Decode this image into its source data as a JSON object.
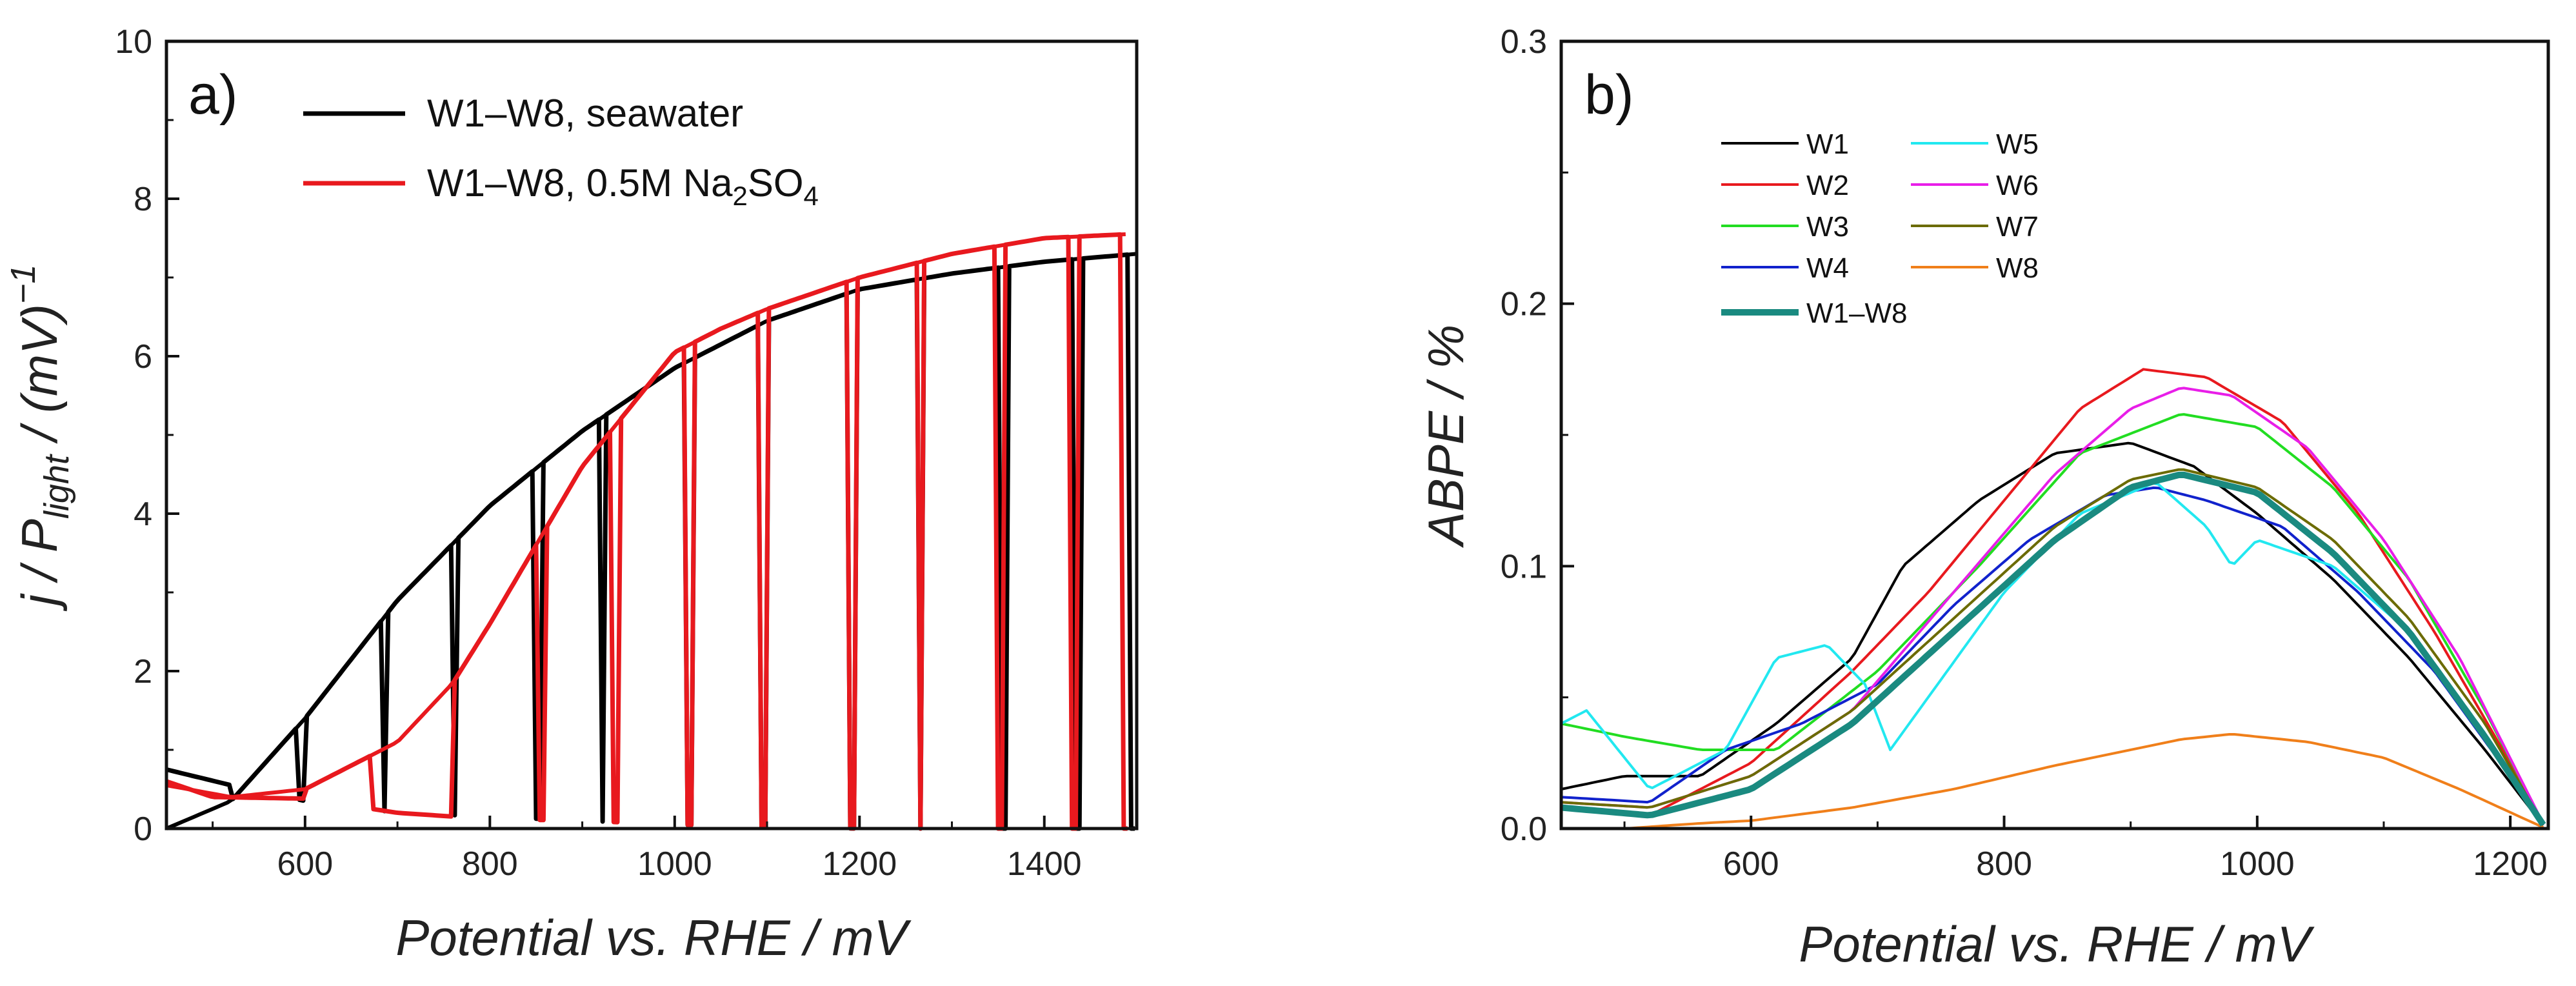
{
  "chart_data": [
    {
      "type": "line",
      "panel_label": "a)",
      "xlabel": "Potential vs. RHE / mV",
      "ylabel": {
        "main": "j / P",
        "sub": "light",
        "unit": " / (mV)",
        "sup": "−1"
      },
      "xlim": [
        450,
        1500
      ],
      "ylim": [
        0,
        10
      ],
      "x_ticks": [
        600,
        800,
        1000,
        1200,
        1400
      ],
      "y_ticks": [
        0,
        2,
        4,
        6,
        8,
        10
      ],
      "grid": false,
      "legend_position": "top-left",
      "series": [
        {
          "name": "W1–W8, seawater",
          "label_main": "W1–W8, seawater",
          "color": "#000000",
          "envelope": {
            "x": [
              450,
              520,
              600,
              700,
              800,
              900,
              1000,
              1100,
              1200,
              1300,
              1400,
              1500
            ],
            "y": [
              0.0,
              0.35,
              1.4,
              2.9,
              4.1,
              5.05,
              5.85,
              6.45,
              6.85,
              7.05,
              7.2,
              7.3
            ]
          },
          "dark_baseline": {
            "x": [
              450,
              520,
              600,
              700,
              800,
              900,
              1000,
              1100,
              1200,
              1500
            ],
            "y": [
              0.75,
              0.55,
              0.35,
              0.2,
              0.15,
              0.1,
              0.05,
              0.02,
              0.0,
              0.0
            ]
          },
          "chop_on": [
            520,
            600,
            690,
            765,
            855,
            925,
            1020,
            1100,
            1195,
            1270,
            1360,
            1440
          ],
          "chop_off": [
            600,
            690,
            765,
            855,
            925,
            1020,
            1100,
            1195,
            1270,
            1360,
            1440,
            1500
          ]
        },
        {
          "name": "W1–W8, 0.5M Na2SO4",
          "label_main": "W1–W8, 0.5M Na",
          "label_sub1": "2",
          "label_mid": "SO",
          "label_sub2": "4",
          "color": "#e8191e",
          "envelope": {
            "x": [
              450,
              520,
              600,
              700,
              760,
              800,
              900,
              1000,
              1050,
              1100,
              1200,
              1300,
              1400,
              1490
            ],
            "y": [
              0.55,
              0.4,
              0.5,
              1.1,
              1.85,
              2.6,
              4.6,
              6.05,
              6.35,
              6.6,
              7.0,
              7.3,
              7.5,
              7.55
            ]
          },
          "dark_baseline": {
            "x": [
              450,
              500,
              600,
              700,
              800,
              900,
              1000,
              1100,
              1200,
              1300,
              1400,
              1490
            ],
            "y": [
              0.6,
              0.4,
              0.38,
              0.2,
              0.12,
              0.1,
              0.05,
              0.03,
              0.0,
              0.0,
              0.0,
              0.0
            ]
          },
          "chop_on": [
            600,
            760,
            860,
            940,
            1020,
            1100,
            1195,
            1270,
            1355,
            1435
          ],
          "chop_off": [
            680,
            860,
            940,
            1020,
            1100,
            1195,
            1270,
            1355,
            1435,
            1490
          ]
        }
      ]
    },
    {
      "type": "line",
      "panel_label": "b)",
      "xlabel": "Potential vs. RHE / mV",
      "ylabel": "ABPE / %",
      "xlim": [
        450,
        1230
      ],
      "ylim": [
        0,
        0.3
      ],
      "x_ticks": [
        600,
        800,
        1000,
        1200
      ],
      "y_ticks": [
        0.0,
        0.1,
        0.2,
        0.3
      ],
      "y_tick_labels": [
        "0.0",
        "0.1",
        "0.2",
        "0.3"
      ],
      "grid": false,
      "legend_position": "top-left",
      "series": [
        {
          "name": "W1",
          "color": "#000000",
          "x": [
            450,
            500,
            560,
            620,
            680,
            720,
            780,
            840,
            900,
            950,
            1000,
            1060,
            1120,
            1180,
            1228
          ],
          "y": [
            0.015,
            0.02,
            0.02,
            0.04,
            0.065,
            0.1,
            0.125,
            0.143,
            0.147,
            0.138,
            0.12,
            0.095,
            0.065,
            0.03,
            0.0
          ]
        },
        {
          "name": "W2",
          "color": "#e8191e",
          "x": [
            450,
            520,
            600,
            680,
            740,
            800,
            860,
            910,
            960,
            1020,
            1080,
            1140,
            1200,
            1228
          ],
          "y": [
            0.008,
            0.005,
            0.025,
            0.06,
            0.09,
            0.125,
            0.16,
            0.175,
            0.172,
            0.155,
            0.12,
            0.075,
            0.025,
            0.0
          ]
        },
        {
          "name": "W3",
          "color": "#22dd22",
          "x": [
            450,
            500,
            560,
            620,
            700,
            780,
            860,
            940,
            1000,
            1060,
            1120,
            1180,
            1228
          ],
          "y": [
            0.04,
            0.035,
            0.03,
            0.03,
            0.06,
            0.1,
            0.143,
            0.158,
            0.153,
            0.13,
            0.095,
            0.045,
            0.0
          ]
        },
        {
          "name": "W4",
          "color": "#1122cc",
          "x": [
            450,
            520,
            580,
            640,
            700,
            760,
            820,
            880,
            920,
            960,
            1020,
            1080,
            1140,
            1200,
            1228
          ],
          "y": [
            0.012,
            0.01,
            0.03,
            0.04,
            0.055,
            0.085,
            0.11,
            0.127,
            0.13,
            0.125,
            0.115,
            0.09,
            0.06,
            0.02,
            0.0
          ]
        },
        {
          "name": "W5",
          "color": "#22e8f0",
          "x": [
            450,
            470,
            520,
            580,
            620,
            660,
            690,
            710,
            740,
            800,
            860,
            920,
            960,
            980,
            1000,
            1060,
            1120,
            1180,
            1228
          ],
          "y": [
            0.04,
            0.045,
            0.015,
            0.03,
            0.065,
            0.07,
            0.055,
            0.03,
            0.05,
            0.09,
            0.12,
            0.132,
            0.115,
            0.1,
            0.11,
            0.1,
            0.075,
            0.035,
            0.0
          ]
        },
        {
          "name": "W6",
          "color": "#e81ee8",
          "x": [
            450,
            520,
            600,
            680,
            760,
            840,
            900,
            940,
            980,
            1040,
            1100,
            1160,
            1228
          ],
          "y": [
            0.01,
            0.008,
            0.02,
            0.045,
            0.09,
            0.135,
            0.16,
            0.168,
            0.165,
            0.145,
            0.11,
            0.065,
            0.0
          ]
        },
        {
          "name": "W7",
          "color": "#6b6b00",
          "x": [
            450,
            520,
            600,
            680,
            760,
            840,
            900,
            940,
            1000,
            1060,
            1120,
            1180,
            1228
          ],
          "y": [
            0.01,
            0.008,
            0.02,
            0.045,
            0.08,
            0.115,
            0.133,
            0.137,
            0.13,
            0.11,
            0.08,
            0.04,
            0.0
          ]
        },
        {
          "name": "W8",
          "color": "#f07f1a",
          "x": [
            450,
            500,
            560,
            600,
            680,
            760,
            840,
            900,
            940,
            980,
            1040,
            1100,
            1160,
            1228
          ],
          "y": [
            0.0,
            0.0,
            0.002,
            0.003,
            0.008,
            0.015,
            0.024,
            0.03,
            0.034,
            0.036,
            0.033,
            0.027,
            0.015,
            0.0
          ]
        },
        {
          "name": "W1–W8",
          "color": "#1a8a80",
          "x": [
            450,
            520,
            600,
            680,
            760,
            840,
            900,
            940,
            1000,
            1060,
            1120,
            1180,
            1228
          ],
          "y": [
            0.008,
            0.005,
            0.015,
            0.04,
            0.075,
            0.11,
            0.13,
            0.135,
            0.128,
            0.105,
            0.075,
            0.035,
            0.0
          ]
        }
      ]
    }
  ]
}
